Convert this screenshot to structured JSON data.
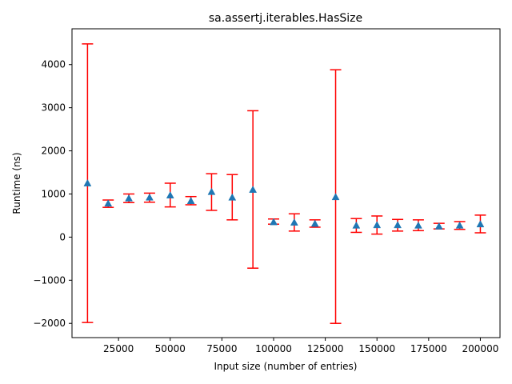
{
  "chart_data": {
    "type": "scatter",
    "title": "sa.assertj.iterables.HasSize",
    "xlabel": "Input size (number of entries)",
    "ylabel": "Runtime (ns)",
    "xlim": [
      2500,
      209500
    ],
    "ylim": [
      -2330,
      4830
    ],
    "x_ticks": [
      25000,
      50000,
      75000,
      100000,
      125000,
      150000,
      175000,
      200000
    ],
    "x_tick_labels": [
      "25000",
      "50000",
      "75000",
      "100000",
      "125000",
      "150000",
      "175000",
      "200000"
    ],
    "y_ticks": [
      -2000,
      -1000,
      0,
      1000,
      2000,
      3000,
      4000
    ],
    "y_tick_labels": [
      "−2000",
      "−1000",
      "0",
      "1000",
      "2000",
      "3000",
      "4000"
    ],
    "grid": false,
    "marker_color": "#1f77b4",
    "errorbar_color": "#ff0000",
    "points": [
      {
        "x": 10000,
        "y": 1250,
        "lo": -1980,
        "hi": 4480
      },
      {
        "x": 20000,
        "y": 780,
        "lo": 690,
        "hi": 860
      },
      {
        "x": 30000,
        "y": 900,
        "lo": 800,
        "hi": 1000
      },
      {
        "x": 40000,
        "y": 920,
        "lo": 810,
        "hi": 1020
      },
      {
        "x": 50000,
        "y": 970,
        "lo": 700,
        "hi": 1250
      },
      {
        "x": 60000,
        "y": 840,
        "lo": 750,
        "hi": 940
      },
      {
        "x": 70000,
        "y": 1050,
        "lo": 620,
        "hi": 1470
      },
      {
        "x": 80000,
        "y": 920,
        "lo": 400,
        "hi": 1450
      },
      {
        "x": 90000,
        "y": 1100,
        "lo": -720,
        "hi": 2930
      },
      {
        "x": 100000,
        "y": 350,
        "lo": 300,
        "hi": 420
      },
      {
        "x": 110000,
        "y": 340,
        "lo": 140,
        "hi": 540
      },
      {
        "x": 120000,
        "y": 310,
        "lo": 230,
        "hi": 400
      },
      {
        "x": 130000,
        "y": 930,
        "lo": -2000,
        "hi": 3880
      },
      {
        "x": 140000,
        "y": 270,
        "lo": 110,
        "hi": 430
      },
      {
        "x": 150000,
        "y": 280,
        "lo": 70,
        "hi": 490
      },
      {
        "x": 160000,
        "y": 280,
        "lo": 140,
        "hi": 410
      },
      {
        "x": 170000,
        "y": 270,
        "lo": 150,
        "hi": 400
      },
      {
        "x": 180000,
        "y": 250,
        "lo": 190,
        "hi": 320
      },
      {
        "x": 190000,
        "y": 270,
        "lo": 180,
        "hi": 360
      },
      {
        "x": 200000,
        "y": 300,
        "lo": 100,
        "hi": 510
      }
    ]
  }
}
